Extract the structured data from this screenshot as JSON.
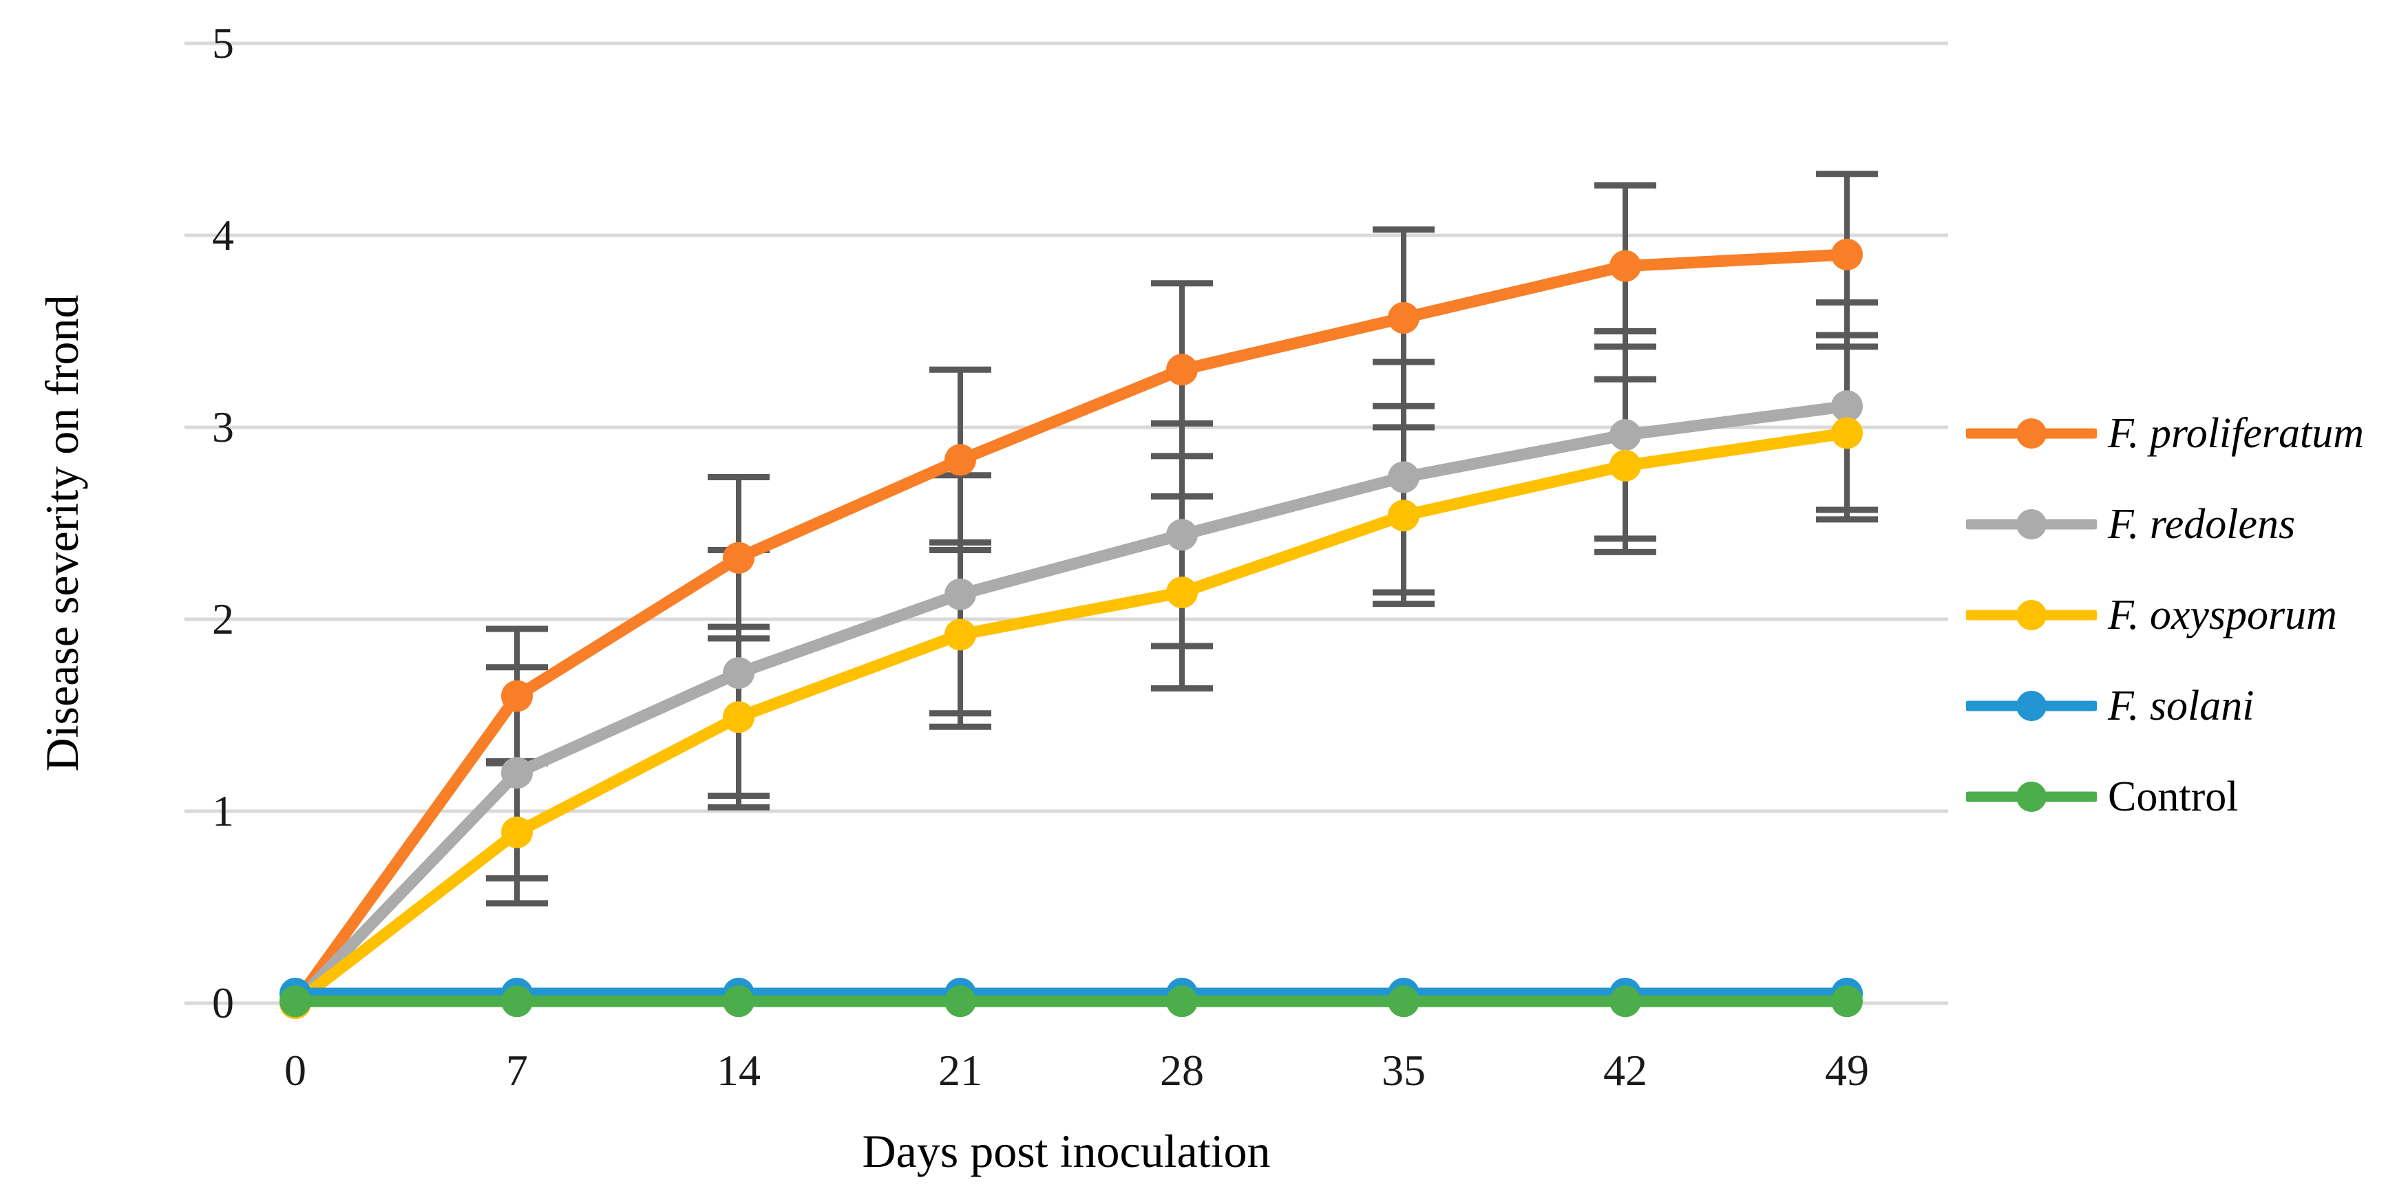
{
  "chart_data": {
    "type": "line",
    "title": "",
    "xlabel": "Days post inoculation",
    "ylabel": "Disease severity on frond",
    "x_categories": [
      0,
      7,
      14,
      21,
      28,
      35,
      42,
      49
    ],
    "y_ticks": [
      0,
      1,
      2,
      3,
      4,
      5
    ],
    "ylim": [
      0,
      5
    ],
    "grid": "horizontal-only",
    "gridline_color": "#d9d9d9",
    "error_bar_color": "#595959",
    "legend_position": "right",
    "series": [
      {
        "name": "F. proliferatum",
        "italic": true,
        "color": "#f87e27",
        "values": [
          0,
          1.6,
          2.32,
          2.83,
          3.3,
          3.57,
          3.84,
          3.9
        ],
        "errors": [
          0,
          0.35,
          0.42,
          0.47,
          0.45,
          0.46,
          0.42,
          0.42
        ]
      },
      {
        "name": "F. redolens",
        "italic": true,
        "color": "#ababab",
        "values": [
          0,
          1.2,
          1.72,
          2.13,
          2.44,
          2.74,
          2.96,
          3.11
        ],
        "errors": [
          0,
          0.55,
          0.64,
          0.62,
          0.58,
          0.6,
          0.54,
          0.54
        ]
      },
      {
        "name": "F. oxysporum",
        "italic": true,
        "color": "#ffc000",
        "values": [
          0,
          0.89,
          1.49,
          1.92,
          2.14,
          2.54,
          2.8,
          2.97
        ],
        "errors": [
          0,
          0.37,
          0.47,
          0.48,
          0.5,
          0.46,
          0.45,
          0.45
        ]
      },
      {
        "name": "F. solani",
        "italic": true,
        "color": "#2295d2",
        "values": [
          0.05,
          0.05,
          0.05,
          0.05,
          0.05,
          0.05,
          0.05,
          0.05
        ],
        "errors": null
      },
      {
        "name": "Control",
        "italic": false,
        "color": "#4bae4a",
        "values": [
          0.01,
          0.01,
          0.01,
          0.01,
          0.01,
          0.01,
          0.01,
          0.01
        ],
        "errors": null
      }
    ]
  }
}
